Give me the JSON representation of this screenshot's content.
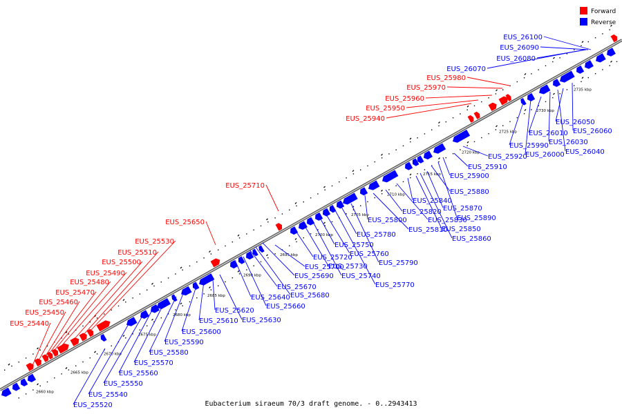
{
  "caption": "Eubacterium siraeum 70/3 draft genome. - 0..2943413",
  "legend": [
    {
      "label": "Forward",
      "color": "#ff0000"
    },
    {
      "label": "Reverse",
      "color": "#0000ff"
    }
  ],
  "colors": {
    "forward": "#ff0000",
    "reverse": "#0000ff",
    "backbone": "#808080"
  },
  "ticks": [
    "2660 kbp",
    "2665 kbp",
    "2670 kbp",
    "2675 kbp",
    "2680 kbp",
    "2685 kbp",
    "2690 kbp",
    "2695 kbp",
    "2700 kbp",
    "2705 kbp",
    "2710 kbp",
    "2715 kbp",
    "2720 kbp",
    "2725 kbp",
    "2730 kbp",
    "2735 kbp"
  ],
  "forward_labels": [
    "EUS_25440",
    "EUS_25450",
    "EUS_25460",
    "EUS_25470",
    "EUS_25480",
    "EUS_25490",
    "EUS_25500",
    "EUS_25510",
    "EUS_25530",
    "EUS_25650",
    "EUS_25710",
    "EUS_25940",
    "EUS_25950",
    "EUS_25960",
    "EUS_25970",
    "EUS_25980"
  ],
  "reverse_labels_top": [
    "EUS_26100",
    "EUS_26090",
    "EUS_26080",
    "EUS_26070"
  ],
  "reverse_labels": [
    "EUS_25520",
    "EUS_25540",
    "EUS_25550",
    "EUS_25560",
    "EUS_25570",
    "EUS_25580",
    "EUS_25590",
    "EUS_25600",
    "EUS_25610",
    "EUS_25620",
    "EUS_25630",
    "EUS_25640",
    "EUS_25660",
    "EUS_25670",
    "EUS_25680",
    "EUS_25690",
    "EUS_25700",
    "EUS_25720",
    "EUS_25730",
    "EUS_25740",
    "EUS_25750",
    "EUS_25760",
    "EUS_25770",
    "EUS_25780",
    "EUS_25790",
    "EUS_25800",
    "EUS_25810",
    "EUS_25820",
    "EUS_25830",
    "EUS_25840",
    "EUS_25850",
    "EUS_25860",
    "EUS_25870",
    "EUS_25880",
    "EUS_25890",
    "EUS_25900",
    "EUS_25910",
    "EUS_25920",
    "EUS_25990",
    "EUS_26000",
    "EUS_26010",
    "EUS_26030",
    "EUS_26040",
    "EUS_26050",
    "EUS_26060"
  ]
}
